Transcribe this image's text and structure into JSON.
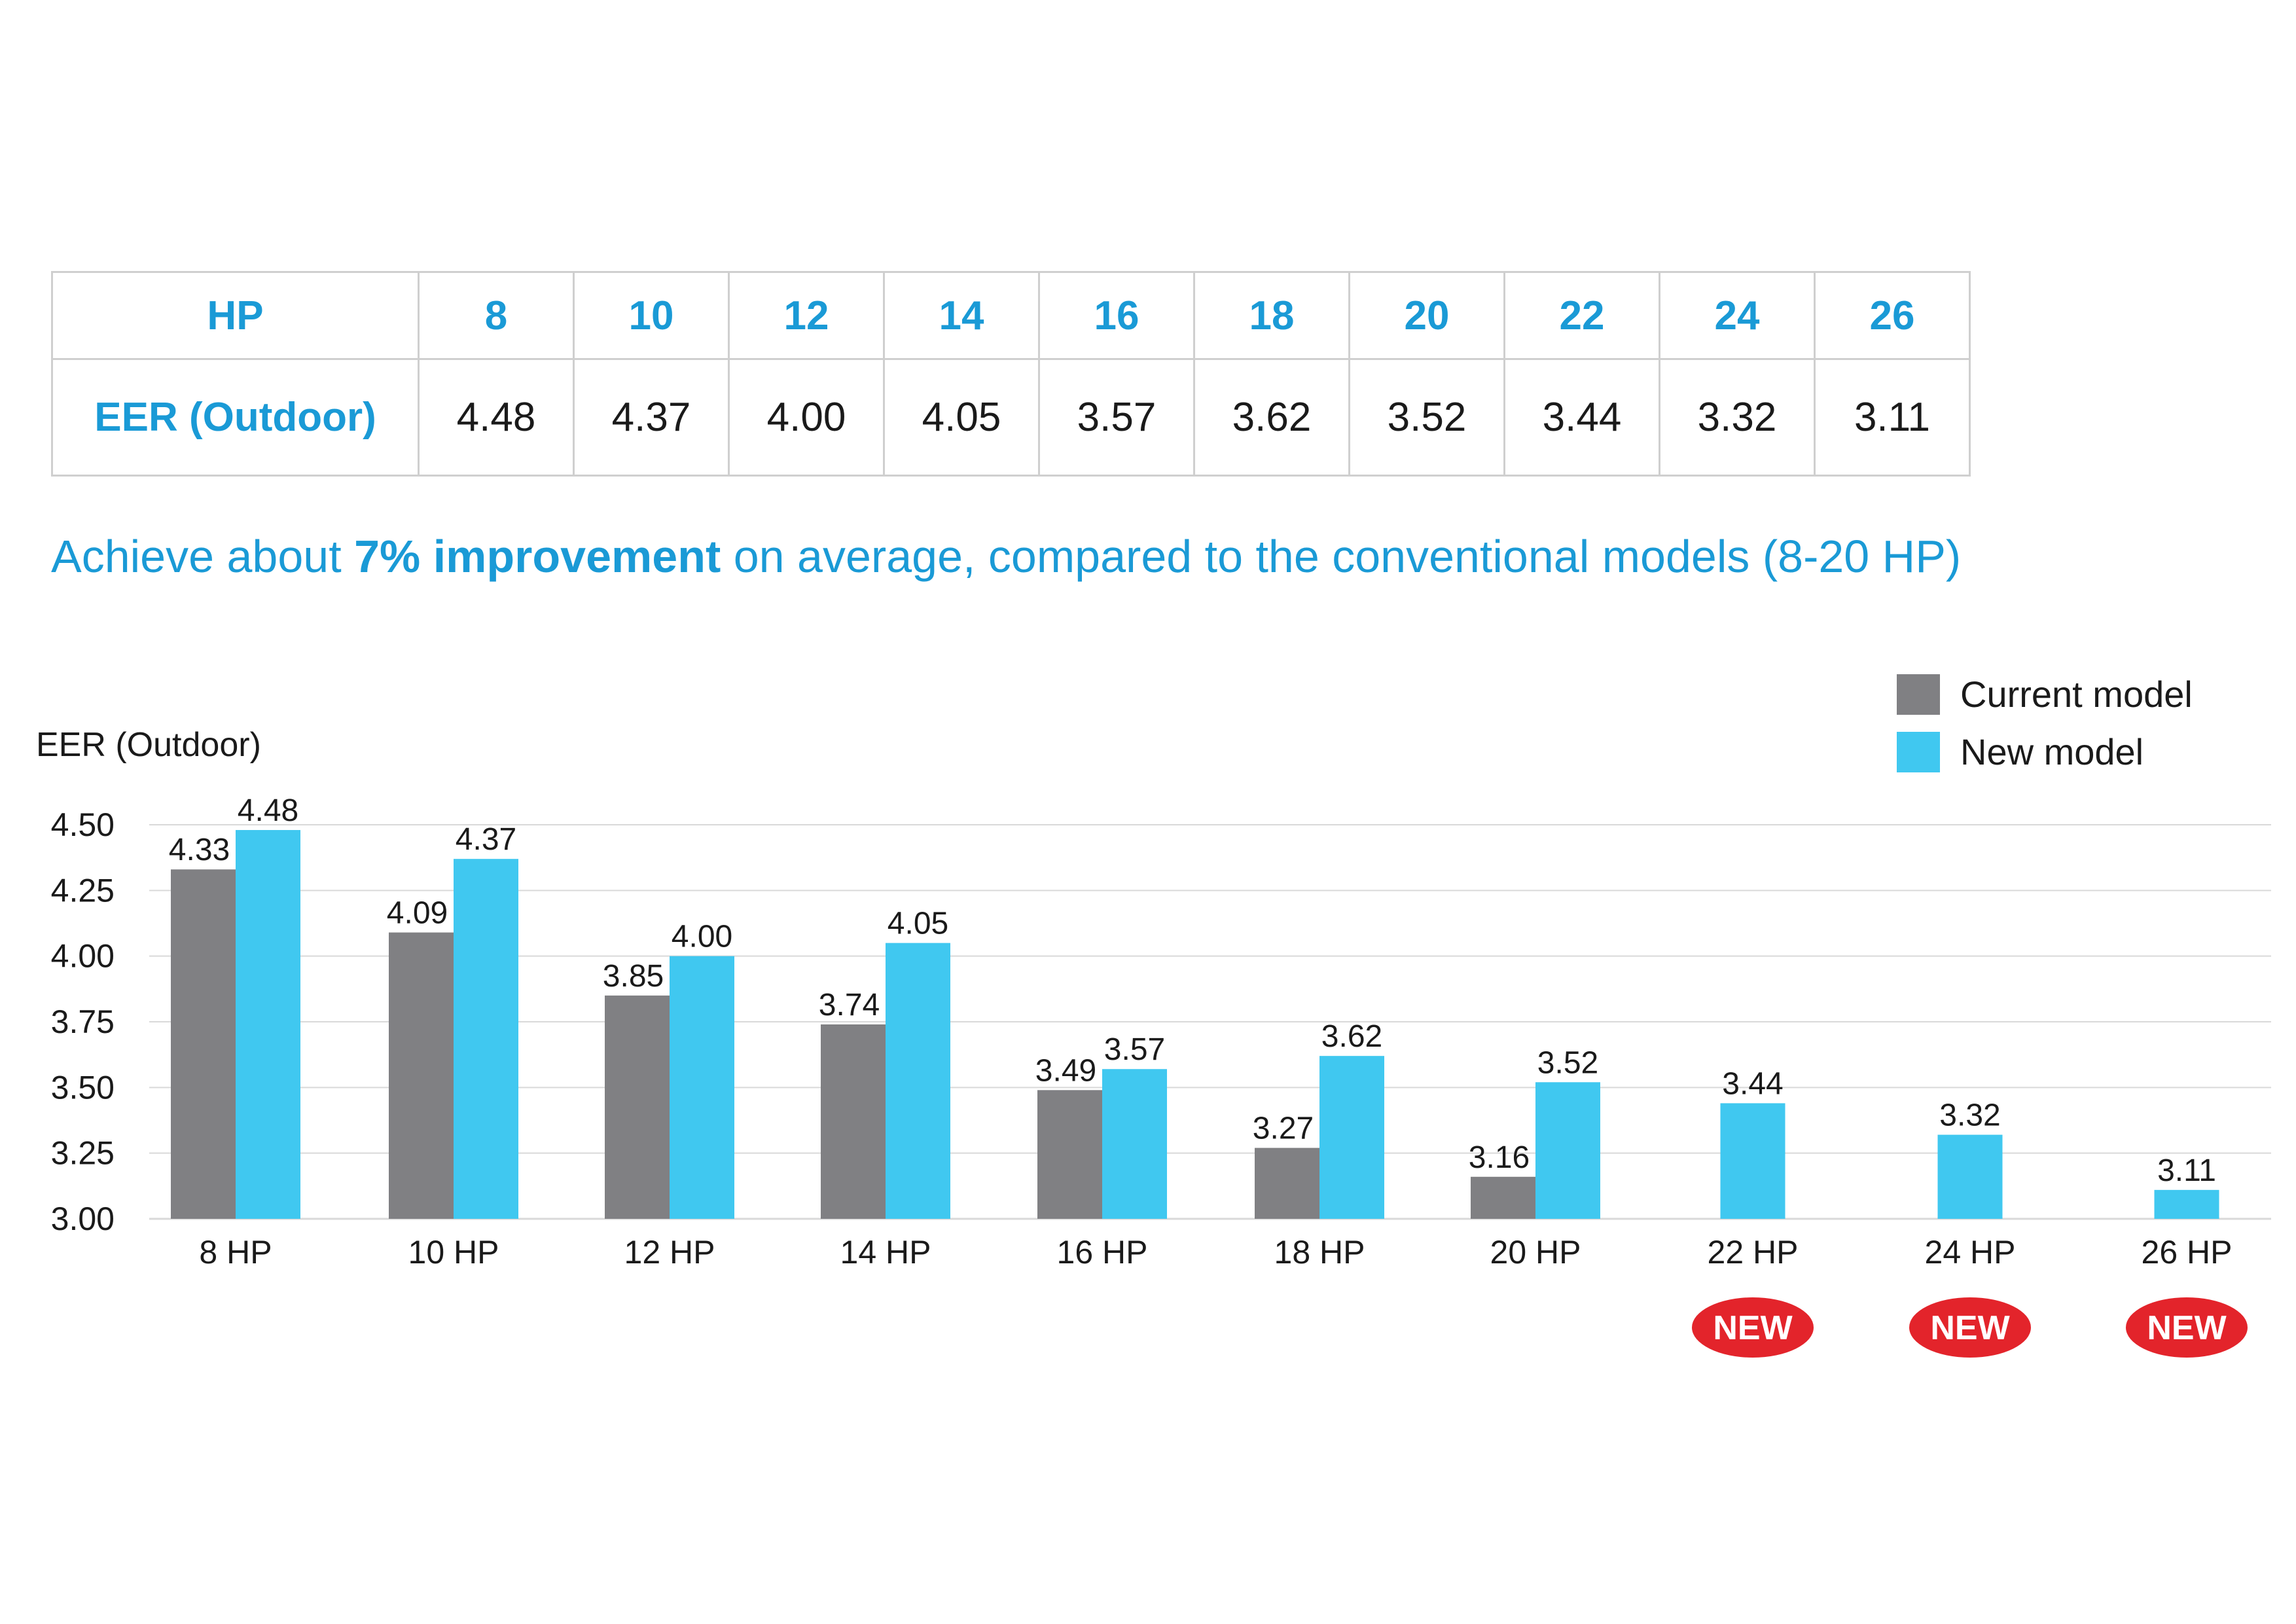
{
  "table": {
    "header_label": "HP",
    "row_label": "EER (Outdoor)",
    "hp_values": [
      "8",
      "10",
      "12",
      "14",
      "16",
      "18",
      "20",
      "22",
      "24",
      "26"
    ],
    "eer_values": [
      "4.48",
      "4.37",
      "4.00",
      "4.05",
      "3.57",
      "3.62",
      "3.52",
      "3.44",
      "3.32",
      "3.11"
    ]
  },
  "headline": {
    "prefix": "Achieve about ",
    "emphasis": "7% improvement",
    "suffix": " on average, compared to the conventional models (8-20 HP)"
  },
  "colors": {
    "current": "#808083",
    "new": "#40c8f0",
    "accent": "#1a9ad6",
    "badge": "#e3242b",
    "grid": "#d9d9d9"
  },
  "chart_data": {
    "type": "bar",
    "ylabel": "EER (Outdoor)",
    "ylim": [
      3.0,
      4.5
    ],
    "yticks": [
      "4.50",
      "4.25",
      "4.00",
      "3.75",
      "3.50",
      "3.25",
      "3.00"
    ],
    "categories": [
      "8 HP",
      "10 HP",
      "12 HP",
      "14 HP",
      "16 HP",
      "18 HP",
      "20 HP",
      "22 HP",
      "24 HP",
      "26 HP"
    ],
    "series": [
      {
        "name": "Current model",
        "values": [
          4.33,
          4.09,
          3.85,
          3.74,
          3.49,
          3.27,
          3.16,
          null,
          null,
          null
        ],
        "labels": [
          "4.33",
          "4.09",
          "3.85",
          "3.74",
          "3.49",
          "3.27",
          "3.16",
          null,
          null,
          null
        ]
      },
      {
        "name": "New model",
        "values": [
          4.48,
          4.37,
          4.0,
          4.05,
          3.57,
          3.62,
          3.52,
          3.44,
          3.32,
          3.11
        ],
        "labels": [
          "4.48",
          "4.37",
          "4.00",
          "4.05",
          "3.57",
          "3.62",
          "3.52",
          "3.44",
          "3.32",
          "3.11"
        ]
      }
    ],
    "badges": [
      null,
      null,
      null,
      null,
      null,
      null,
      null,
      "NEW",
      "NEW",
      "NEW"
    ],
    "grid": true,
    "legend": "top-right"
  }
}
